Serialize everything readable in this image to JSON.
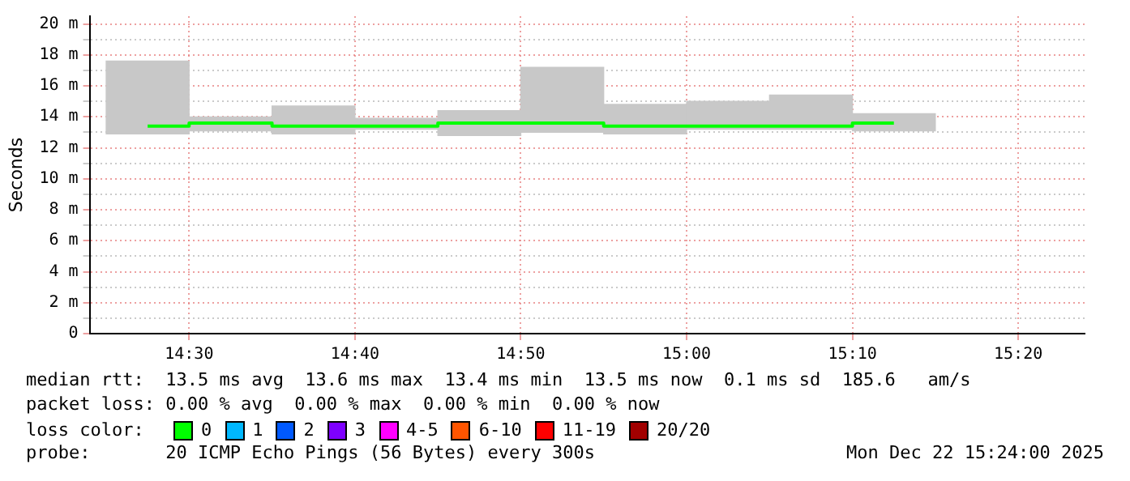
{
  "chart_data": {
    "type": "bar",
    "ylabel": "Seconds",
    "x": [
      14.4583,
      14.5417,
      14.625,
      14.7083,
      14.7917,
      14.875,
      14.9583,
      15.0417,
      15.125,
      15.2083
    ],
    "series": [
      {
        "color": "#c8c8c8",
        "base": [
          12.9,
          13.1,
          12.9,
          13.2,
          12.8,
          13.0,
          12.9,
          13.2,
          13.2,
          13.1
        ],
        "values": [
          4.7,
          0.9,
          1.8,
          0.7,
          1.6,
          4.2,
          1.9,
          1.8,
          2.2,
          1.1
        ]
      },
      {
        "type": "step",
        "color": "#00ff00",
        "values": [
          13.4,
          13.6,
          13.4,
          13.4,
          13.6,
          13.6,
          13.4,
          13.4,
          13.4,
          13.6
        ]
      }
    ],
    "xlim": [
      14.4,
      15.4
    ],
    "xticks": [
      {
        "value": 14.5,
        "label": "14:30"
      },
      {
        "value": 14.6667,
        "label": "14:40"
      },
      {
        "value": 14.8333,
        "label": "14:50"
      },
      {
        "value": 15,
        "label": "15:00"
      },
      {
        "value": 15.1667,
        "label": "15:10"
      },
      {
        "value": 15.3333,
        "label": "15:20"
      }
    ],
    "ylim": [
      0,
      20.5
    ],
    "yticks": [
      0,
      {
        "value": 1,
        "label": null
      },
      {
        "value": 2,
        "label": "2 m"
      },
      {
        "value": 3,
        "label": null
      },
      {
        "value": 4,
        "label": "4 m"
      },
      {
        "value": 5,
        "label": null
      },
      {
        "value": 6,
        "label": "6 m"
      },
      {
        "value": 7,
        "label": null
      },
      {
        "value": 8,
        "label": "8 m"
      },
      {
        "value": 9,
        "label": null
      },
      {
        "value": 10,
        "label": "10 m"
      },
      {
        "value": 11,
        "label": null
      },
      {
        "value": 12,
        "label": "12 m"
      },
      {
        "value": 13,
        "label": null
      },
      {
        "value": 14,
        "label": "14 m"
      },
      {
        "value": 15,
        "label": null
      },
      {
        "value": 16,
        "label": "16 m"
      },
      {
        "value": 17,
        "label": null
      },
      {
        "value": 18,
        "label": "18 m"
      },
      {
        "value": 19,
        "label": null
      },
      {
        "value": 20,
        "label": "20 m"
      }
    ],
    "grid": true,
    "legend": false,
    "annotations": [
      "median rtt:  13.5 ms avg  13.6 ms max  13.4 ms min  13.5 ms now  0.1 ms sd  185.6   am/s",
      "packet loss: 0.00 % avg  0.00 % max  0.00 % min  0.00 % now",
      "loss color:",
      "0",
      "1",
      "2",
      "3",
      "4-5",
      "6-10",
      "11-19",
      "20/20",
      "probe:       20 ICMP Echo Pings (56 Bytes) every 300s",
      "Mon Dec 22 15:24:00 2025"
    ]
  }
}
